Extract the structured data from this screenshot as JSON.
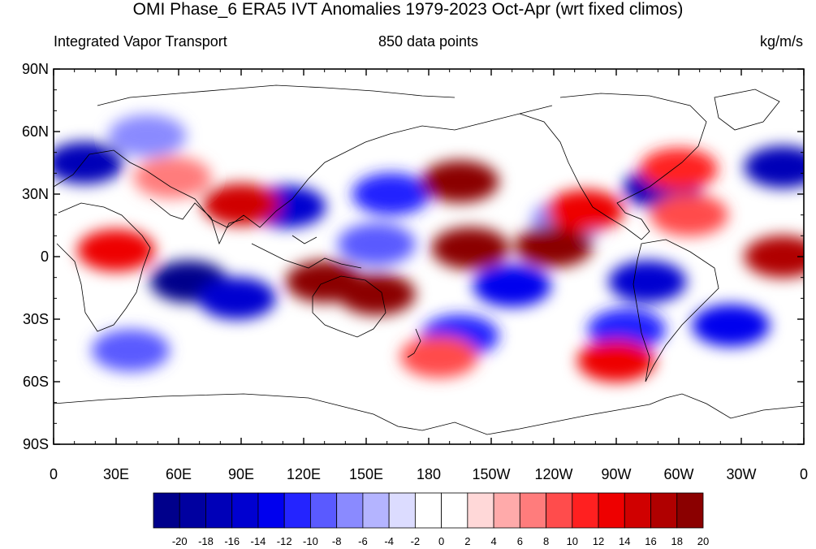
{
  "title": "OMI Phase_6 ERA5 IVT Anomalies 1979-2023 Oct-Apr (wrt fixed climos)",
  "subtitle_left": "Integrated Vapor Transport",
  "subtitle_center": "850 data points",
  "subtitle_right": "kg/m/s",
  "lat_labels": [
    "90N",
    "60N",
    "30N",
    "0",
    "30S",
    "60S",
    "90S"
  ],
  "lon_labels": [
    "0",
    "30E",
    "60E",
    "90E",
    "120E",
    "150E",
    "180",
    "150W",
    "120W",
    "90W",
    "60W",
    "30W",
    "0"
  ],
  "colorbar": {
    "labels": [
      "-20",
      "-18",
      "-16",
      "-14",
      "-12",
      "-10",
      "-8",
      "-6",
      "-4",
      "-2",
      "0",
      "2",
      "4",
      "6",
      "8",
      "10",
      "12",
      "14",
      "16",
      "18",
      "20"
    ],
    "colors": [
      "#00008b",
      "#0000a0",
      "#0000b8",
      "#0000d0",
      "#0000ee",
      "#2424ff",
      "#5a5aff",
      "#8a8aff",
      "#b4b4ff",
      "#dcdcff",
      "#ffffff",
      "#ffffff",
      "#ffd8d8",
      "#ffaaaa",
      "#ff7c7c",
      "#ff4c4c",
      "#ff2020",
      "#ee0000",
      "#d00000",
      "#b00000",
      "#8b0000"
    ]
  },
  "chart_data": {
    "type": "heatmap",
    "title": "OMI Phase_6 ERA5 IVT Anomalies 1979-2023 Oct-Apr (wrt fixed climos)",
    "variable": "Integrated Vapor Transport",
    "units": "kg/m/s",
    "n_points": 850,
    "x_range": [
      0,
      360
    ],
    "y_range": [
      -90,
      90
    ],
    "contour_levels": [
      -20,
      -18,
      -16,
      -14,
      -12,
      -10,
      -8,
      -6,
      -4,
      -2,
      0,
      2,
      4,
      6,
      8,
      10,
      12,
      14,
      16,
      18,
      20
    ],
    "anomaly_features": [
      {
        "lon": 65,
        "lat": -12,
        "value": -20
      },
      {
        "lon": 88,
        "lat": -20,
        "value": -14
      },
      {
        "lon": 112,
        "lat": 24,
        "value": -14
      },
      {
        "lon": 162,
        "lat": 30,
        "value": -10
      },
      {
        "lon": 155,
        "lat": 6,
        "value": -8
      },
      {
        "lon": 220,
        "lat": -14,
        "value": -12
      },
      {
        "lon": 248,
        "lat": 18,
        "value": -6
      },
      {
        "lon": 285,
        "lat": -12,
        "value": -14
      },
      {
        "lon": 292,
        "lat": 33,
        "value": -16
      },
      {
        "lon": 350,
        "lat": 43,
        "value": -16
      },
      {
        "lon": 15,
        "lat": 45,
        "value": -16
      },
      {
        "lon": 325,
        "lat": -33,
        "value": -12
      },
      {
        "lon": 275,
        "lat": -35,
        "value": -10
      },
      {
        "lon": 37,
        "lat": -45,
        "value": -8
      },
      {
        "lon": 195,
        "lat": -38,
        "value": -10
      },
      {
        "lon": 45,
        "lat": 58,
        "value": -6
      },
      {
        "lon": 130,
        "lat": -12,
        "value": 20
      },
      {
        "lon": 155,
        "lat": -18,
        "value": 20
      },
      {
        "lon": 240,
        "lat": 5,
        "value": 20
      },
      {
        "lon": 200,
        "lat": 4,
        "value": 20
      },
      {
        "lon": 350,
        "lat": 0,
        "value": 18
      },
      {
        "lon": 195,
        "lat": 36,
        "value": 20
      },
      {
        "lon": 255,
        "lat": 22,
        "value": 14
      },
      {
        "lon": 30,
        "lat": 3,
        "value": 14
      },
      {
        "lon": 305,
        "lat": 20,
        "value": 10
      },
      {
        "lon": 300,
        "lat": 42,
        "value": 12
      },
      {
        "lon": 270,
        "lat": -50,
        "value": 14
      },
      {
        "lon": 90,
        "lat": 25,
        "value": 16
      },
      {
        "lon": 185,
        "lat": -48,
        "value": 10
      },
      {
        "lon": 57,
        "lat": 38,
        "value": 8
      }
    ]
  }
}
